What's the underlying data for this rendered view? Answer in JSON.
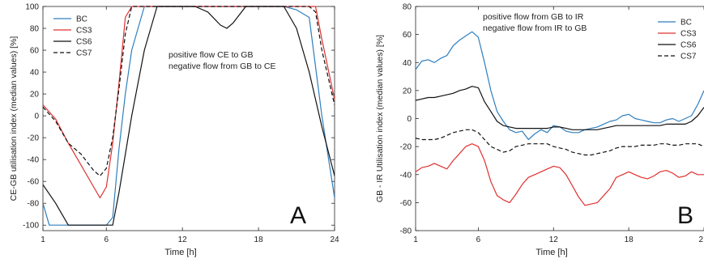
{
  "chart_data": [
    {
      "type": "line",
      "panel_label": "A",
      "xlabel": "Time   [h]",
      "ylabel": "CE-GB utilisation index (median values)  [%]",
      "xlim": [
        1,
        24
      ],
      "ylim": [
        -105,
        100
      ],
      "x_ticks": [
        "1",
        "6",
        "12",
        "18",
        "24"
      ],
      "y_ticks": [
        "100",
        "80",
        "60",
        "40",
        "20",
        "0",
        "-20",
        "-40",
        "-60",
        "-80",
        "-100"
      ],
      "grid": false,
      "legend_position": "top-left",
      "annotations": [
        "positive flow CE to GB",
        "negative flow from GB to CE"
      ],
      "series": [
        {
          "name": "BC",
          "color": "#2e7fbf",
          "dash": "solid",
          "x": [
            1,
            1.5,
            2,
            3,
            4,
            5,
            6,
            6.5,
            7,
            7.5,
            8,
            9,
            10,
            12,
            18,
            20,
            21,
            22,
            23,
            24
          ],
          "y": [
            -80,
            -100,
            -100,
            -100,
            -100,
            -100,
            -100,
            -93,
            -30,
            20,
            60,
            100,
            100,
            100,
            100,
            100,
            97,
            90,
            0,
            -75
          ]
        },
        {
          "name": "CS3",
          "color": "#e03030",
          "dash": "solid",
          "x": [
            1,
            2,
            3,
            4,
            5,
            5.5,
            6,
            6.5,
            7,
            7.5,
            8,
            9,
            12,
            18,
            20,
            21,
            22,
            22.5,
            23,
            24
          ],
          "y": [
            10,
            -3,
            -25,
            -45,
            -65,
            -75,
            -65,
            -25,
            30,
            90,
            100,
            100,
            100,
            100,
            100,
            100,
            100,
            100,
            70,
            15
          ]
        },
        {
          "name": "CS6",
          "color": "#111111",
          "dash": "solid",
          "x": [
            1,
            2,
            3,
            4,
            5,
            6,
            6.5,
            7,
            8,
            9,
            10,
            11,
            12,
            13,
            14,
            15,
            15.5,
            16,
            17,
            18,
            19,
            20,
            21,
            22,
            23,
            24
          ],
          "y": [
            -63,
            -80,
            -100,
            -100,
            -100,
            -100,
            -100,
            -70,
            0,
            60,
            100,
            100,
            100,
            100,
            95,
            83,
            80,
            85,
            100,
            100,
            100,
            100,
            80,
            40,
            -10,
            -55
          ]
        },
        {
          "name": "CS7",
          "color": "#111111",
          "dash": "dashed",
          "x": [
            1,
            2,
            3,
            4,
            5,
            5.5,
            6,
            6.5,
            7,
            7.5,
            8,
            9,
            12,
            18,
            20,
            21,
            22,
            22.5,
            23,
            24
          ],
          "y": [
            8,
            -5,
            -25,
            -35,
            -50,
            -55,
            -48,
            -20,
            25,
            75,
            100,
            100,
            100,
            100,
            100,
            100,
            100,
            95,
            60,
            10
          ]
        }
      ]
    },
    {
      "type": "line",
      "panel_label": "B",
      "xlabel": "Time   [h]",
      "ylabel": "GB - IR Utilisation index (median values)   [%]",
      "xlim": [
        1,
        24
      ],
      "ylim": [
        -80,
        80
      ],
      "x_ticks": [
        "1",
        "6",
        "12",
        "18",
        "2"
      ],
      "y_ticks": [
        "80",
        "60",
        "40",
        "20",
        "0",
        "-20",
        "-40",
        "-60",
        "-80"
      ],
      "grid": false,
      "legend_position": "top-right",
      "annotations": [
        "positive flow from GB to IR",
        "negative flow from IR to GB"
      ],
      "series": [
        {
          "name": "BC",
          "color": "#2e7fbf",
          "dash": "solid",
          "x": [
            1,
            1.5,
            2,
            2.5,
            3,
            3.5,
            4,
            4.5,
            5,
            5.5,
            6,
            6.5,
            7,
            7.5,
            8,
            8.5,
            9,
            9.5,
            10,
            10.5,
            11,
            11.5,
            12,
            12.5,
            13,
            13.5,
            14,
            14.5,
            15,
            15.5,
            16,
            16.5,
            17,
            17.5,
            18,
            18.5,
            19,
            19.5,
            20,
            20.5,
            21,
            21.5,
            22,
            22.5,
            23,
            23.5,
            24
          ],
          "y": [
            35,
            41,
            42,
            40,
            43,
            45,
            52,
            56,
            59,
            62,
            58,
            40,
            20,
            5,
            -2,
            -8,
            -10,
            -9,
            -15,
            -11,
            -8,
            -10,
            -5,
            -6,
            -9,
            -10,
            -10,
            -8,
            -7,
            -6,
            -4,
            -2,
            -1,
            2,
            3,
            0,
            -1,
            -2,
            -3,
            -3,
            -1,
            0,
            -2,
            0,
            2,
            10,
            20
          ]
        },
        {
          "name": "CS3",
          "color": "#e03030",
          "dash": "solid",
          "x": [
            1,
            1.5,
            2,
            2.5,
            3,
            3.5,
            4,
            4.5,
            5,
            5.5,
            6,
            6.5,
            7,
            7.5,
            8,
            8.5,
            9,
            9.5,
            10,
            10.5,
            11,
            11.5,
            12,
            12.5,
            13,
            13.5,
            14,
            14.5,
            15,
            15.5,
            16,
            16.5,
            17,
            17.5,
            18,
            18.5,
            19,
            19.5,
            20,
            20.5,
            21,
            21.5,
            22,
            22.5,
            23,
            23.5,
            24
          ],
          "y": [
            -38,
            -35,
            -34,
            -32,
            -34,
            -36,
            -30,
            -25,
            -20,
            -18,
            -20,
            -30,
            -45,
            -55,
            -58,
            -60,
            -54,
            -47,
            -42,
            -40,
            -38,
            -36,
            -34,
            -35,
            -40,
            -48,
            -56,
            -62,
            -61,
            -60,
            -55,
            -50,
            -42,
            -40,
            -38,
            -40,
            -42,
            -43,
            -41,
            -38,
            -37,
            -39,
            -42,
            -41,
            -38,
            -40,
            -40
          ]
        },
        {
          "name": "CS6",
          "color": "#111111",
          "dash": "solid",
          "x": [
            1,
            1.5,
            2,
            2.5,
            3,
            3.5,
            4,
            4.5,
            5,
            5.5,
            6,
            6.5,
            7,
            7.5,
            8,
            8.5,
            9,
            9.5,
            10,
            10.5,
            11,
            11.5,
            12,
            12.5,
            13,
            13.5,
            14,
            14.5,
            15,
            15.5,
            16,
            16.5,
            17,
            17.5,
            18,
            18.5,
            19,
            19.5,
            20,
            20.5,
            21,
            21.5,
            22,
            22.5,
            23,
            23.5,
            24
          ],
          "y": [
            13,
            14,
            15,
            15,
            16,
            17,
            18,
            20,
            21,
            23,
            22,
            12,
            5,
            -2,
            -5,
            -6,
            -7,
            -7,
            -7,
            -7,
            -7,
            -7,
            -6,
            -6,
            -7,
            -8,
            -8,
            -8,
            -8,
            -8,
            -7,
            -6,
            -5,
            -5,
            -5,
            -5,
            -5,
            -5,
            -5,
            -5,
            -4,
            -4,
            -4,
            -4,
            -2,
            2,
            8
          ]
        },
        {
          "name": "CS7",
          "color": "#111111",
          "dash": "dashed",
          "x": [
            1,
            1.5,
            2,
            2.5,
            3,
            3.5,
            4,
            4.5,
            5,
            5.5,
            6,
            6.5,
            7,
            7.5,
            8,
            8.5,
            9,
            9.5,
            10,
            10.5,
            11,
            11.5,
            12,
            12.5,
            13,
            13.5,
            14,
            14.5,
            15,
            15.5,
            16,
            16.5,
            17,
            17.5,
            18,
            18.5,
            19,
            19.5,
            20,
            20.5,
            21,
            21.5,
            22,
            22.5,
            23,
            23.5,
            24
          ],
          "y": [
            -14,
            -15,
            -15,
            -15,
            -14,
            -12,
            -10,
            -9,
            -8,
            -8,
            -10,
            -15,
            -20,
            -22,
            -24,
            -23,
            -20,
            -19,
            -18,
            -18,
            -18,
            -18,
            -20,
            -21,
            -22,
            -24,
            -25,
            -26,
            -26,
            -25,
            -24,
            -23,
            -21,
            -20,
            -20,
            -20,
            -19,
            -19,
            -19,
            -18,
            -18,
            -19,
            -19,
            -18,
            -18,
            -18,
            -20
          ]
        }
      ]
    }
  ]
}
